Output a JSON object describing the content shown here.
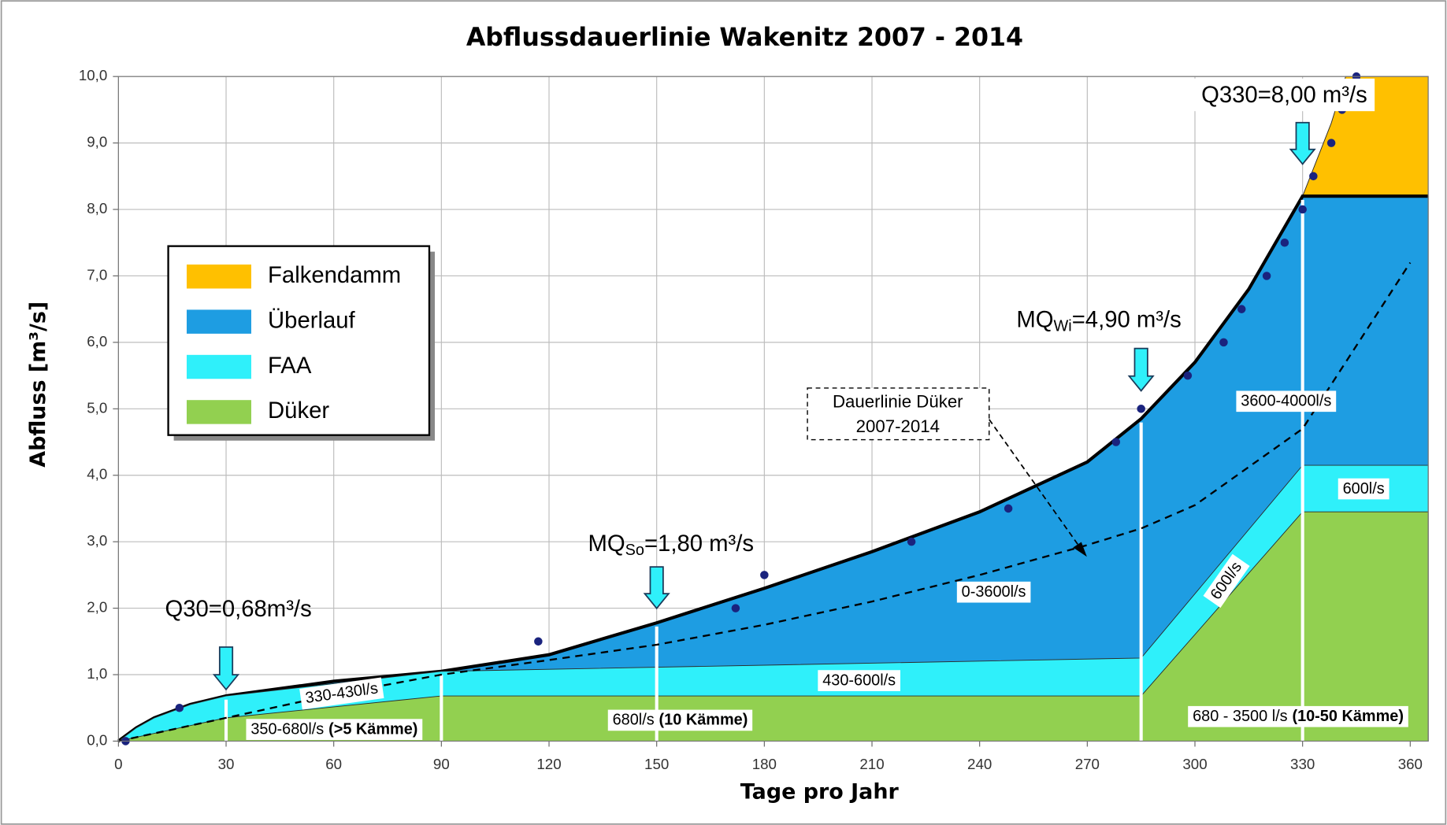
{
  "chart_data": {
    "type": "area",
    "title": "Abflussdauerlinie Wakenitz 2007 - 2014",
    "x_label": "Tage pro Jahr",
    "y_label": "Abfluss [m³/s]",
    "xlim": [
      0,
      365
    ],
    "ylim": [
      0,
      10
    ],
    "xticks": [
      0,
      30,
      60,
      90,
      120,
      150,
      180,
      210,
      240,
      270,
      300,
      330,
      360
    ],
    "yticks": [
      {
        "value": 0,
        "label": "0,0"
      },
      {
        "value": 1,
        "label": "1,0"
      },
      {
        "value": 2,
        "label": "2,0"
      },
      {
        "value": 3,
        "label": "3,0"
      },
      {
        "value": 4,
        "label": "4,0"
      },
      {
        "value": 5,
        "label": "5,0"
      },
      {
        "value": 6,
        "label": "6,0"
      },
      {
        "value": 7,
        "label": "7,0"
      },
      {
        "value": 8,
        "label": "8,0"
      },
      {
        "value": 9,
        "label": "9,0"
      },
      {
        "value": 10,
        "label": "10,0"
      }
    ],
    "grid": true,
    "legend": "upper left",
    "series": [
      {
        "name": "Falkendamm",
        "color": "#ffc000",
        "x": [
          0,
          5,
          10,
          20,
          30,
          60,
          90,
          120,
          150,
          180,
          210,
          240,
          270,
          285,
          300,
          315,
          330,
          338,
          342,
          365
        ],
        "values": [
          0,
          0.2,
          0.35,
          0.55,
          0.68,
          0.9,
          1.05,
          1.3,
          1.78,
          2.3,
          2.85,
          3.45,
          4.2,
          4.85,
          5.7,
          6.8,
          8.2,
          9.3,
          10,
          10
        ]
      },
      {
        "name": "Überlauf",
        "color": "#1e9de2",
        "edge": "#000000",
        "x": [
          0,
          5,
          10,
          20,
          30,
          60,
          90,
          120,
          150,
          180,
          210,
          240,
          270,
          285,
          300,
          315,
          330,
          365
        ],
        "values": [
          0,
          0.2,
          0.35,
          0.55,
          0.68,
          0.9,
          1.05,
          1.3,
          1.78,
          2.3,
          2.85,
          3.45,
          4.2,
          4.85,
          5.7,
          6.8,
          8.2,
          8.2
        ]
      },
      {
        "name": "FAA",
        "color": "#2ff0fa",
        "x": [
          0,
          5,
          10,
          20,
          30,
          90,
          285,
          330,
          365
        ],
        "values": [
          0,
          0.2,
          0.35,
          0.55,
          0.68,
          1.05,
          1.25,
          4.15,
          4.15
        ]
      },
      {
        "name": "Düker",
        "color": "#92d050",
        "x": [
          0,
          30,
          90,
          285,
          330,
          365
        ],
        "values": [
          0,
          0.35,
          0.68,
          0.68,
          3.45,
          3.45
        ]
      }
    ],
    "duker_line": {
      "x": [
        0,
        30,
        60,
        90,
        120,
        150,
        180,
        210,
        240,
        270,
        285,
        300,
        330,
        360
      ],
      "values": [
        0,
        0.35,
        0.7,
        1.0,
        1.22,
        1.45,
        1.75,
        2.1,
        2.5,
        2.95,
        3.2,
        3.55,
        4.7,
        7.2
      ]
    },
    "points": {
      "color": "#1a237e",
      "x": [
        2,
        17,
        117,
        172,
        180,
        221,
        248,
        278,
        285,
        298,
        308,
        313,
        320,
        325,
        330,
        333,
        338,
        341,
        345
      ],
      "values": [
        0,
        0.5,
        1.5,
        2.0,
        2.5,
        3.0,
        3.5,
        4.5,
        5.0,
        5.5,
        6.0,
        6.5,
        7.0,
        7.5,
        8.0,
        8.5,
        9.0,
        9.5,
        10.0
      ]
    },
    "dividers": [
      30,
      90,
      150,
      285,
      330
    ],
    "annotations": [
      {
        "x": 30,
        "text": [
          "Q30=0,68m³/s"
        ]
      },
      {
        "x": 150,
        "text": [
          "MQ",
          "So",
          "=1,80 m³/s"
        ]
      },
      {
        "x": 285,
        "text": [
          "MQ",
          "Wi",
          "=4,90 m³/s"
        ]
      },
      {
        "x": 330,
        "text": [
          "Q330=8,00 m³/s"
        ]
      }
    ],
    "region_labels": [
      [
        "330-430l/s"
      ],
      [
        "350-680l/s",
        "(>5 Kämme)"
      ],
      [
        "680l/s",
        "(10 Kämme)"
      ],
      [
        "430-600l/s"
      ],
      [
        "0-3600l/s"
      ],
      [
        "600l/s"
      ],
      [
        "3600-4000l/s"
      ],
      [
        "600l/s"
      ],
      [
        "680 - 3500 l/s",
        "(10-50 Kämme)"
      ]
    ],
    "callout": [
      "Dauerlinie Düker",
      "2007-2014"
    ]
  }
}
